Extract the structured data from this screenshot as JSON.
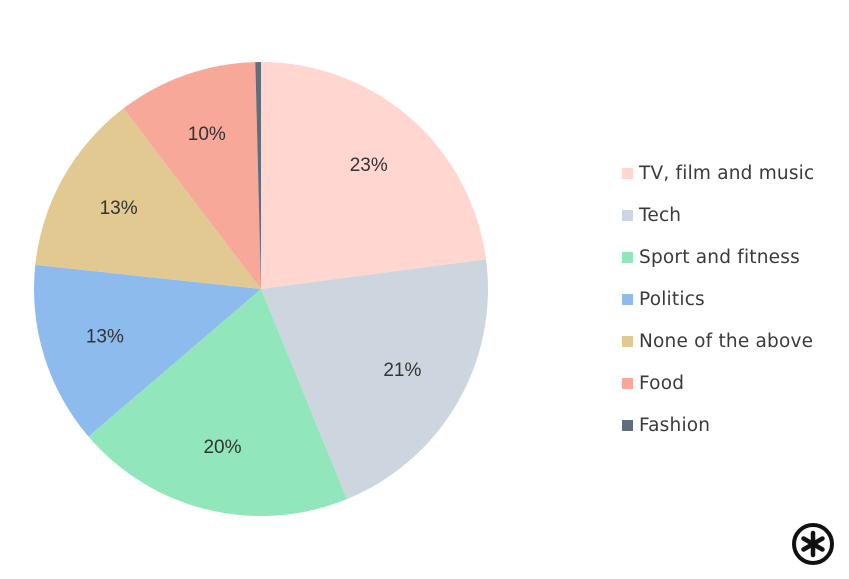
{
  "chart_data": {
    "type": "pie",
    "title": "",
    "slices": [
      {
        "label": "TV, film and music",
        "value": 23,
        "display": "23%",
        "color": "#ffd6d0"
      },
      {
        "label": "Tech",
        "value": 21,
        "display": "21%",
        "color": "#cdd6de"
      },
      {
        "label": "Sport and fitness",
        "value": 20,
        "display": "20%",
        "color": "#91e6bb"
      },
      {
        "label": "Politics",
        "value": 13,
        "display": "13%",
        "color": "#8dbbee"
      },
      {
        "label": "None of the above",
        "value": 13,
        "display": "13%",
        "color": "#e2c891"
      },
      {
        "label": "Food",
        "value": 10,
        "display": "10%",
        "color": "#f8a898"
      },
      {
        "label": "Fashion",
        "value": 0.4,
        "display": "",
        "color": "#5f6d7d"
      }
    ],
    "legend_position": "right"
  },
  "logo": {
    "icon": "asterisk-circle-logo",
    "color": "#111111"
  }
}
